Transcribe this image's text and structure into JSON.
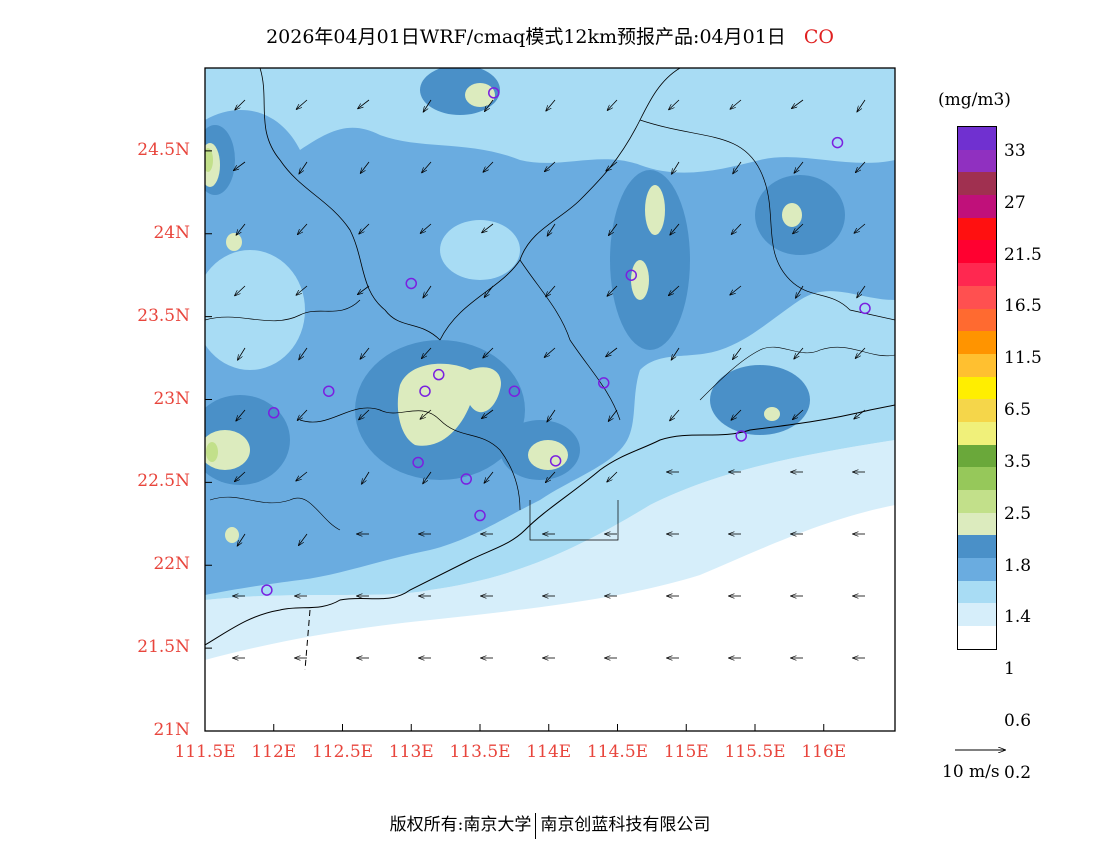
{
  "title": "2026年04月01日WRF/cmaq模式12km预报产品:04月01日",
  "pollutant": "CO",
  "unit": "(mg/m3)",
  "lat_labels": [
    "24.5N",
    "24N",
    "23.5N",
    "23N",
    "22.5N",
    "22N",
    "21.5N",
    "21N"
  ],
  "lon_labels": [
    "111.5E",
    "112E",
    "112.5E",
    "113E",
    "113.5E",
    "114E",
    "114.5E",
    "115E",
    "115.5E",
    "116E"
  ],
  "colorbar_labels": [
    "33",
    "27",
    "21.5",
    "16.5",
    "11.5",
    "6.5",
    "3.5",
    "2.5",
    "1.8",
    "1.4",
    "1",
    "0.6",
    "0.2"
  ],
  "colorbar_colors": [
    "#ffffff",
    "#d6eefa",
    "#a8dcf4",
    "#6aace0",
    "#4a90c8",
    "#dcebbe",
    "#c2e08a",
    "#96c85a",
    "#6aa83a",
    "#f0f07a",
    "#f5d64a",
    "#ffee00",
    "#ffc030",
    "#ff9400",
    "#ff6a30",
    "#ff5050",
    "#ff2850",
    "#ff0030",
    "#ff1010",
    "#c0107a",
    "#a03050",
    "#9030c0",
    "#7030d0"
  ],
  "wind_reference": "10 m/s",
  "footer": {
    "left": "版权所有:南京大学",
    "right": "南京创蓝科技有限公司"
  },
  "stations": [
    [
      113.6,
      24.85
    ],
    [
      116.1,
      24.55
    ],
    [
      113.0,
      23.7
    ],
    [
      114.6,
      23.75
    ],
    [
      116.3,
      23.55
    ],
    [
      112.4,
      23.05
    ],
    [
      113.1,
      23.05
    ],
    [
      113.2,
      23.15
    ],
    [
      113.75,
      23.05
    ],
    [
      114.4,
      23.1
    ],
    [
      112.0,
      22.92
    ],
    [
      113.05,
      22.62
    ],
    [
      113.4,
      22.52
    ],
    [
      114.05,
      22.63
    ],
    [
      115.4,
      22.78
    ],
    [
      113.5,
      22.3
    ],
    [
      111.95,
      21.85
    ]
  ]
}
